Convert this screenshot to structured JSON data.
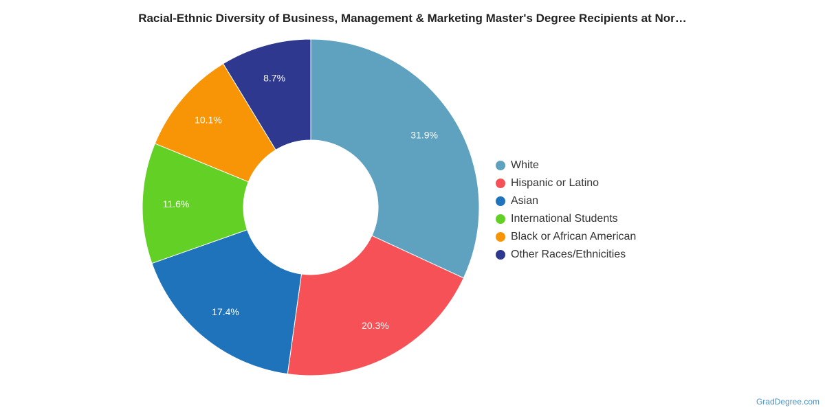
{
  "chart_data": {
    "type": "pie",
    "title": "Racial-Ethnic Diversity of Business, Management & Marketing Master's Degree Recipients at Nor…",
    "donut": true,
    "legend_position": "right",
    "series": [
      {
        "name": "White",
        "value": 31.9,
        "label": "31.9%",
        "color": "#5ea2c0"
      },
      {
        "name": "Hispanic or Latino",
        "value": 20.3,
        "label": "20.3%",
        "color": "#f65156"
      },
      {
        "name": "Asian",
        "value": 17.4,
        "label": "17.4%",
        "color": "#1e73bb"
      },
      {
        "name": "International Students",
        "value": 11.6,
        "label": "11.6%",
        "color": "#62d024"
      },
      {
        "name": "Black or African American",
        "value": 10.1,
        "label": "10.1%",
        "color": "#f79506"
      },
      {
        "name": "Other Races/Ethnicities",
        "value": 8.7,
        "label": "8.7%",
        "color": "#2d388e"
      }
    ]
  },
  "watermark": "GradDegree.com"
}
